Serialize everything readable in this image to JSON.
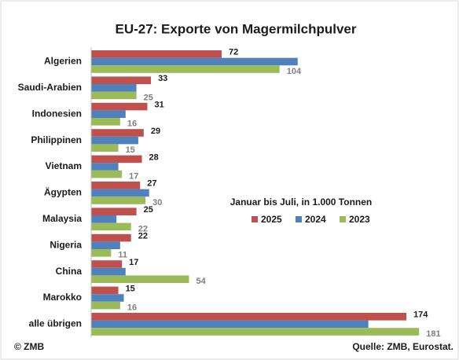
{
  "chart_data": {
    "type": "hbar",
    "title": "EU-27: Exporte von Magermilchpulver",
    "subtitle": "Januar bis Juli, in 1.000 Tonnen",
    "categories": [
      "Algerien",
      "Saudi-Arabien",
      "Indonesien",
      "Philippinen",
      "Vietnam",
      "Ägypten",
      "Malaysia",
      "Nigeria",
      "China",
      "Marokko",
      "alle übrigen"
    ],
    "series": [
      {
        "name": "2025",
        "color": "#c0504d",
        "values": [
          72,
          33,
          31,
          29,
          28,
          27,
          25,
          22,
          17,
          15,
          174
        ],
        "labels": true
      },
      {
        "name": "2024",
        "color": "#4f81bd",
        "values": [
          114,
          25,
          19,
          26,
          15,
          32,
          14,
          16,
          19,
          18,
          153
        ],
        "labels": false
      },
      {
        "name": "2023",
        "color": "#9bbb59",
        "values": [
          104,
          25,
          16,
          15,
          17,
          30,
          22,
          11,
          54,
          16,
          181
        ],
        "labels": true
      }
    ],
    "copyright": "© ZMB",
    "source": "Quelle: ZMB, Eurostat."
  }
}
